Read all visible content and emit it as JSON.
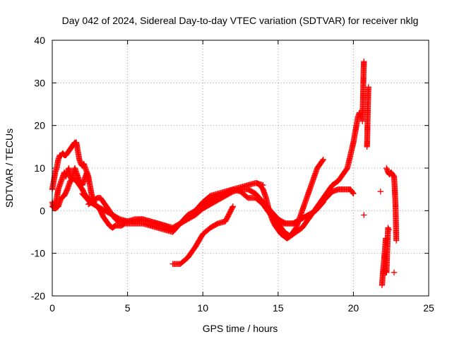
{
  "chart_data": {
    "type": "scatter",
    "title": "Day 042 of 2024, Sidereal Day-to-day VTEC variation (SDTVAR) for receiver nklg",
    "xlabel": "GPS time / hours",
    "ylabel": "SDTVAR / TECUs",
    "xlim": [
      0,
      25
    ],
    "ylim": [
      -20,
      40
    ],
    "xticks": [
      0,
      5,
      10,
      15,
      20,
      25
    ],
    "yticks": [
      -20,
      -10,
      0,
      10,
      20,
      30,
      40
    ],
    "grid": true,
    "marker": "+",
    "series": [
      {
        "name": "SDTVAR",
        "color": "#ff0000",
        "tracks": [
          {
            "x": [
              0.0,
              0.1,
              0.2,
              0.3,
              0.4,
              0.5,
              0.6,
              0.7,
              0.8,
              0.9,
              1.0,
              1.1,
              1.2,
              1.3,
              1.4,
              1.5,
              1.6,
              1.7,
              1.8,
              1.9,
              2.0,
              2.1,
              2.2,
              2.3,
              2.4
            ],
            "y": [
              5,
              7,
              9,
              10,
              12,
              13,
              13,
              13.5,
              13,
              13,
              13.5,
              14,
              14.5,
              15,
              15.5,
              16,
              16,
              14,
              12,
              11,
              10.5,
              11,
              10,
              9,
              7
            ]
          },
          {
            "x": [
              0.0,
              0.1,
              0.2,
              0.3,
              0.4,
              0.5,
              0.6,
              0.7,
              0.8,
              0.9,
              1.0,
              1.1,
              1.2,
              1.3,
              1.4,
              1.5,
              1.6,
              1.7,
              1.8,
              1.9,
              2.0,
              2.1,
              2.2,
              2.3,
              2.4,
              2.5,
              2.6,
              2.7,
              2.8
            ],
            "y": [
              2,
              1,
              1.5,
              3,
              5,
              6,
              7,
              8,
              9,
              8,
              9,
              10,
              8,
              7,
              9,
              10,
              9,
              8,
              7,
              6.5,
              6,
              7,
              8,
              9,
              8,
              6,
              4,
              3,
              2
            ]
          },
          {
            "x": [
              0.0,
              0.2,
              0.4,
              0.6,
              0.8,
              1.0,
              1.2,
              1.4,
              1.6,
              1.8,
              2.0,
              2.2,
              2.4,
              2.6,
              2.8,
              3.0,
              3.2,
              3.4,
              3.6,
              3.8,
              4.0,
              4.2,
              4.4,
              4.6,
              4.8,
              5.0,
              5.5,
              6.0,
              6.5,
              7.0,
              7.5,
              8.0,
              8.5,
              9.0,
              9.5,
              10.0,
              10.5,
              11.0,
              11.5,
              12.0,
              12.5,
              13.0,
              13.5,
              14.0
            ],
            "y": [
              1,
              0.5,
              1,
              3,
              3.5,
              5,
              7,
              7.5,
              7,
              6,
              5,
              3.5,
              3,
              2,
              1.5,
              1,
              0,
              -1.5,
              -2.5,
              -3.5,
              -4,
              -3.5,
              -3.5,
              -3.5,
              -3,
              -3,
              -3,
              -3,
              -3.5,
              -4,
              -4.5,
              -5,
              -3,
              -1.5,
              0,
              1,
              2.5,
              3.5,
              4,
              5,
              5.5,
              6,
              6.5,
              6
            ]
          },
          {
            "x": [
              2.4,
              2.6,
              2.8,
              3.0,
              3.2,
              3.4,
              3.6,
              3.8,
              4.0,
              4.2,
              4.4,
              4.6,
              4.8,
              5.0,
              5.5,
              6.0,
              6.5,
              7.0,
              7.5,
              8.0,
              8.5,
              9.0,
              9.5,
              10.0,
              10.5,
              11.0,
              11.5,
              12.0,
              12.5,
              13.0,
              13.5,
              14.0,
              14.5,
              15.0,
              15.5,
              16.0,
              16.5,
              17.0,
              17.5,
              18.0
            ],
            "y": [
              1.5,
              2,
              2.5,
              3,
              3,
              2,
              1,
              0,
              -1,
              -2,
              -2.5,
              -2.5,
              -2.5,
              -2.5,
              -2.5,
              -2,
              -2.5,
              -3,
              -3.5,
              -4,
              -3,
              -2,
              -1,
              0.5,
              1.5,
              2.5,
              3.5,
              4.5,
              5,
              5,
              4,
              2,
              0,
              -2,
              -3,
              -3,
              -2,
              -1,
              0,
              2
            ]
          },
          {
            "x": [
              2.0,
              2.5,
              3.0,
              3.5,
              4.0,
              4.5,
              5.0,
              5.5,
              6.0,
              6.5,
              7.0,
              7.5,
              8.0,
              8.5,
              9.0,
              9.5,
              10.0,
              10.5,
              11.0,
              11.5,
              12.0,
              12.5,
              13.0,
              13.5,
              14.0,
              14.5,
              15.0,
              15.5,
              16.0,
              16.5,
              17.0
            ],
            "y": [
              4,
              2,
              1,
              0,
              -1,
              -2,
              -2.5,
              -2,
              -2,
              -2.5,
              -3,
              -3.5,
              -4.5,
              -3,
              -1,
              0,
              2,
              3.5,
              4,
              4.5,
              5,
              4.5,
              3,
              3,
              1.5,
              -1,
              -3,
              -3,
              -3,
              -2,
              -1
            ]
          },
          {
            "x": [
              8.0,
              8.5,
              9.0,
              9.5,
              10.0,
              10.5,
              11.0,
              11.5,
              12.0
            ],
            "y": [
              -12.5,
              -12.5,
              -11,
              -8.5,
              -5.5,
              -4,
              -3,
              -2.5,
              1
            ]
          },
          {
            "x": [
              13.6,
              13.8,
              14.0,
              14.2,
              14.4,
              14.6,
              14.8,
              15.0,
              15.2,
              15.4,
              15.6,
              15.8,
              16.0,
              16.2,
              16.4,
              16.6,
              16.8,
              17.0,
              17.2,
              17.4,
              17.6,
              17.8,
              18.0
            ],
            "y": [
              6.5,
              6,
              5,
              3,
              0,
              -2,
              -3.5,
              -4.5,
              -5.5,
              -6,
              -6.5,
              -6,
              -5,
              -4,
              -2,
              0,
              2,
              4,
              6,
              8,
              10,
              11,
              12
            ]
          },
          {
            "x": [
              15.0,
              15.4,
              15.8,
              16.2,
              16.6,
              17.0,
              17.4,
              17.8,
              18.2,
              18.6,
              19.0,
              19.4,
              19.8,
              20.0
            ],
            "y": [
              -3,
              -5,
              -6,
              -5,
              -4,
              -2,
              0,
              1.5,
              3,
              4.5,
              5,
              5,
              5,
              4
            ]
          },
          {
            "x": [
              17.0,
              17.4,
              17.8,
              18.2,
              18.6,
              19.0,
              19.2,
              19.4,
              19.6,
              19.8,
              20.0,
              20.1,
              20.2,
              20.3,
              20.4,
              20.5
            ],
            "y": [
              -2,
              0,
              2,
              4,
              6,
              7,
              8,
              9,
              10,
              13,
              16,
              18,
              20,
              22,
              23,
              22
            ]
          },
          {
            "x": [
              20.6,
              20.62,
              20.64,
              20.66,
              20.68,
              20.7
            ],
            "y": [
              21,
              24,
              27,
              30,
              33,
              35
            ]
          },
          {
            "x": [
              20.9,
              20.92,
              20.94,
              20.96,
              20.98,
              21.0
            ],
            "y": [
              15,
              17,
              21,
              24,
              27,
              29
            ]
          },
          {
            "x": [
              20.7
            ],
            "y": [
              -1
            ]
          },
          {
            "x": [
              21.8
            ],
            "y": [
              4.5
            ]
          },
          {
            "x": [
              21.9,
              21.95,
              22.0,
              22.05,
              22.1,
              22.15
            ],
            "y": [
              -17.5,
              -15,
              -13,
              -11,
              -9,
              -6.5
            ]
          },
          {
            "x": [
              22.1,
              22.15,
              22.2,
              22.3,
              22.35
            ],
            "y": [
              -14,
              -14.5,
              -14.5,
              -4,
              -4.5
            ]
          },
          {
            "x": [
              22.2,
              22.3,
              22.4,
              22.5,
              22.6,
              22.7,
              22.75,
              22.8,
              22.85
            ],
            "y": [
              10,
              9,
              8.5,
              9,
              8.5,
              8,
              5,
              1,
              -7
            ]
          },
          {
            "x": [
              22.7
            ],
            "y": [
              -14.5
            ]
          }
        ]
      }
    ]
  }
}
